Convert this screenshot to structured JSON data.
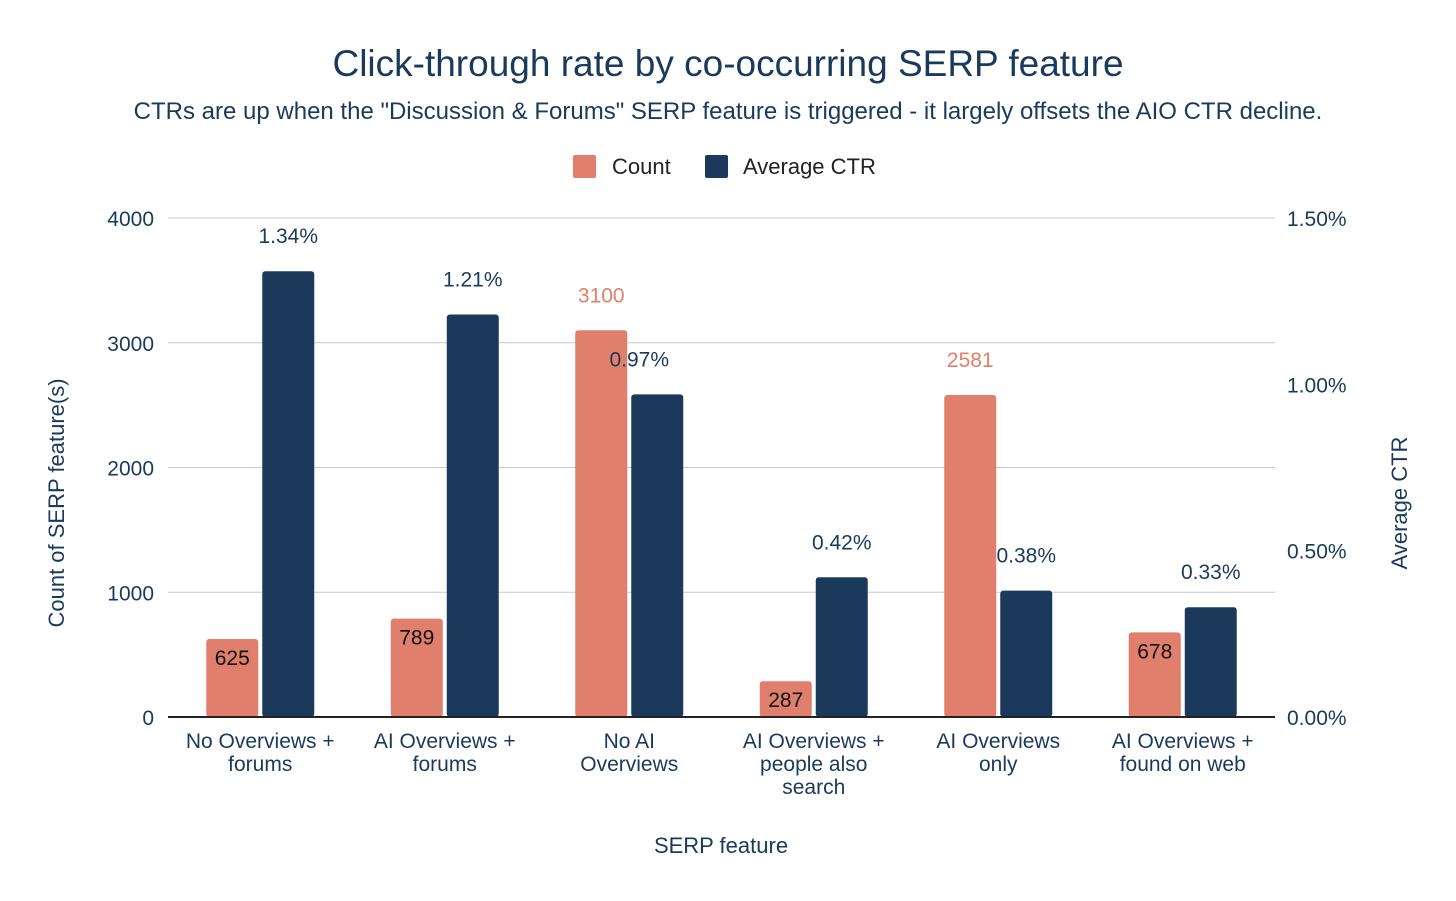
{
  "chart_data": {
    "type": "bar",
    "title": "Click-through rate by co-occurring SERP feature",
    "subtitle": "CTRs are up when the \"Discussion & Forums\" SERP feature is triggered - it largely offsets the AIO CTR decline.",
    "xlabel": "SERP feature",
    "ylabel": "Count of SERP feature(s)",
    "y2label": "Average CTR",
    "categories": [
      [
        "No Overviews +",
        "forums"
      ],
      [
        "AI Overviews +",
        "forums"
      ],
      [
        "No AI",
        "Overviews"
      ],
      [
        "AI Overviews +",
        "people also",
        "search"
      ],
      [
        "AI Overviews",
        "only"
      ],
      [
        "AI Overviews +",
        "found on web"
      ]
    ],
    "series": [
      {
        "name": "Count",
        "axis": "left",
        "color": "#E07F6B",
        "values": [
          625,
          789,
          3100,
          287,
          2581,
          678
        ],
        "labels": [
          "625",
          "789",
          "3100",
          "287",
          "2581",
          "678"
        ]
      },
      {
        "name": "Average CTR",
        "axis": "right",
        "color": "#1B3A5B",
        "values": [
          1.34,
          1.21,
          0.97,
          0.42,
          0.38,
          0.33
        ],
        "labels": [
          "1.34%",
          "1.21%",
          "0.97%",
          "0.42%",
          "0.38%",
          "0.33%"
        ]
      }
    ],
    "ylim": [
      0,
      4000
    ],
    "y2lim": [
      0,
      1.5
    ],
    "yticks": [
      "0",
      "1000",
      "2000",
      "3000",
      "4000"
    ],
    "y2ticks": [
      "0.00%",
      "0.50%",
      "1.00%",
      "1.50%"
    ],
    "grid": true,
    "legend": "top"
  }
}
